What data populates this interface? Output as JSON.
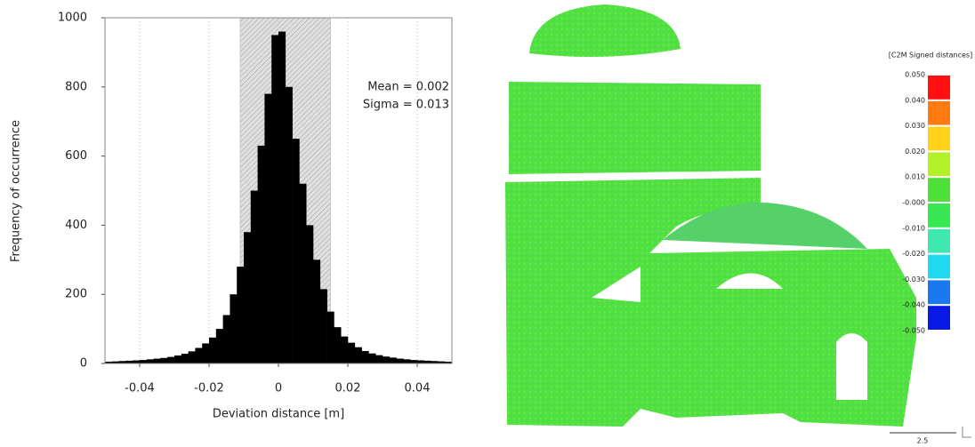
{
  "chart_data": {
    "type": "histogram",
    "xlabel": "Deviation distance [m]",
    "ylabel": "Frequency of occurrence",
    "annotations": [
      "Mean = 0.002",
      "Sigma = 0.013"
    ],
    "bins": [
      -0.05,
      -0.048,
      -0.046,
      -0.044,
      -0.042,
      -0.04,
      -0.038,
      -0.036,
      -0.034,
      -0.032,
      -0.03,
      -0.028,
      -0.026,
      -0.024,
      -0.022,
      -0.02,
      -0.018,
      -0.016,
      -0.014,
      -0.012,
      -0.01,
      -0.008,
      -0.006,
      -0.004,
      -0.002,
      0,
      0.002,
      0.004,
      0.006,
      0.008,
      0.01,
      0.012,
      0.014,
      0.016,
      0.018,
      0.02,
      0.022,
      0.024,
      0.026,
      0.028,
      0.03,
      0.032,
      0.034,
      0.036,
      0.038,
      0.04,
      0.042,
      0.044,
      0.046,
      0.048,
      0.05
    ],
    "values": [
      5,
      6,
      7,
      8,
      9,
      10,
      12,
      14,
      16,
      19,
      23,
      28,
      35,
      45,
      58,
      75,
      100,
      140,
      200,
      280,
      380,
      500,
      630,
      780,
      950,
      960,
      800,
      650,
      520,
      400,
      300,
      215,
      150,
      105,
      78,
      60,
      47,
      36,
      29,
      24,
      20,
      17,
      14,
      12,
      10,
      9,
      8,
      7,
      6,
      5
    ],
    "color": "#000000",
    "shaded_range": [
      -0.011,
      0.015
    ],
    "shaded_color": "#c8c8c8",
    "xlim": [
      -0.05,
      0.05
    ],
    "xticks": [
      -0.04,
      -0.02,
      0,
      0.02,
      0.04
    ],
    "ylim": [
      0,
      1000
    ],
    "yticks": [
      0,
      200,
      400,
      600,
      800,
      1000
    ],
    "grid": "x"
  },
  "colorbar": {
    "title": "[C2M Signed distances]",
    "labels": [
      "0.050",
      "0.040",
      "0.030",
      "0.020",
      "0.010",
      "-0.000",
      "-0.010",
      "-0.020",
      "-0.030",
      "-0.040",
      "-0.050"
    ],
    "colors": [
      "#ff1010",
      "#ff7a10",
      "#ffd21a",
      "#b4f02a",
      "#4ce038",
      "#38e850",
      "#3ee8b0",
      "#20d8f0",
      "#1a78f0",
      "#0a18e8"
    ]
  },
  "scale_bar": "2.5"
}
